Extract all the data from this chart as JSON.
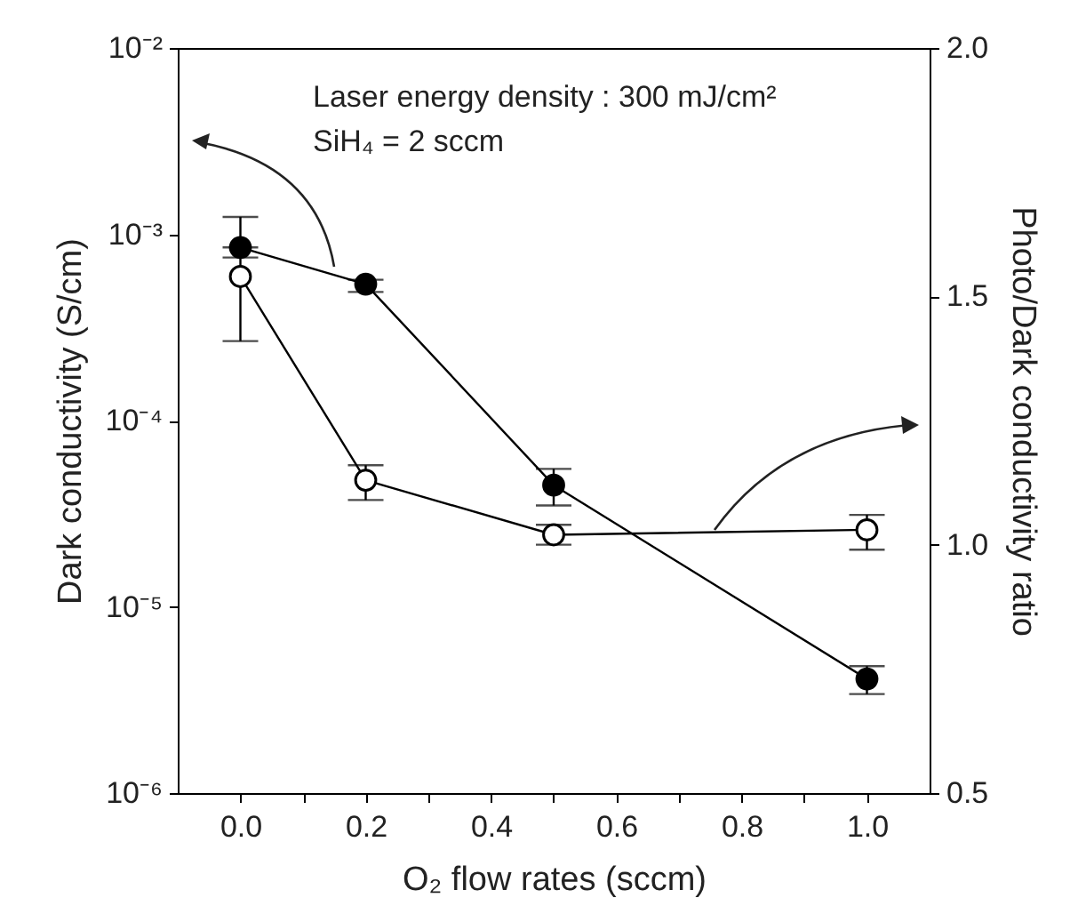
{
  "chart_data": {
    "type": "line",
    "xlabel": "O₂ flow rates (sccm)",
    "ylabel": "Dark conductivity (S/cm)",
    "y2label": "Photo/Dark conductivity ratio",
    "annotations": [
      "Laser energy density : 300 mJ/cm²",
      "SiH₄ = 2 sccm"
    ],
    "x": [
      0.0,
      0.2,
      0.5,
      1.0
    ],
    "series": [
      {
        "color": "#000000",
        "marker": "circle",
        "values": [
          0.00085,
          0.00054,
          4.5e-05,
          4.1e-06
        ],
        "errors": [
          [
            0.00075,
            0.00085
          ],
          [
            0.00049,
            0.00057
          ],
          [
            3.5e-05,
            5.5e-05
          ],
          [
            3.4e-06,
            4.8e-06
          ]
        ]
      },
      {
        "color": "#000000",
        "marker": "circle",
        "axis": "y2",
        "values": [
          1.54,
          1.13,
          1.02,
          1.03
        ],
        "errors": [
          [
            1.41,
            1.66
          ],
          [
            1.09,
            1.16
          ],
          [
            1.0,
            1.04
          ],
          [
            0.99,
            1.06
          ]
        ]
      }
    ],
    "log": "y",
    "grid": false,
    "xlim": [
      -0.1,
      1.1
    ],
    "xticks": [
      {
        "value": 0,
        "label": "0.0"
      },
      {
        "value": 0.1,
        "label": null
      },
      {
        "value": 0.2,
        "label": "0.2"
      },
      {
        "value": 0.3,
        "label": null
      },
      {
        "value": 0.4,
        "label": "0.4"
      },
      {
        "value": 0.5,
        "label": null
      },
      {
        "value": 0.6,
        "label": "0.6"
      },
      {
        "value": 0.7,
        "label": null
      },
      {
        "value": 0.8,
        "label": "0.8"
      },
      {
        "value": 0.9,
        "label": null
      },
      {
        "value": 1.0,
        "label": "1.0"
      }
    ],
    "ylim": [
      1e-06,
      0.01
    ],
    "yticks": [
      {
        "value": 1e-06,
        "label": "10⁻⁶"
      },
      {
        "value": 1e-05,
        "label": "10⁻⁵"
      },
      {
        "value": 0.0001,
        "label": "10⁻⁴"
      },
      {
        "value": 0.001,
        "label": "10⁻³"
      },
      {
        "value": 0.01,
        "label": "10⁻²"
      }
    ],
    "y2lim": [
      0.5,
      2.0
    ],
    "y2ticks": [
      {
        "value": 0.5,
        "label": "0.5"
      },
      {
        "value": 1.0,
        "label": "1.0"
      },
      {
        "value": 1.5,
        "label": "1.5"
      },
      {
        "value": 2.0,
        "label": "2.0"
      }
    ]
  }
}
